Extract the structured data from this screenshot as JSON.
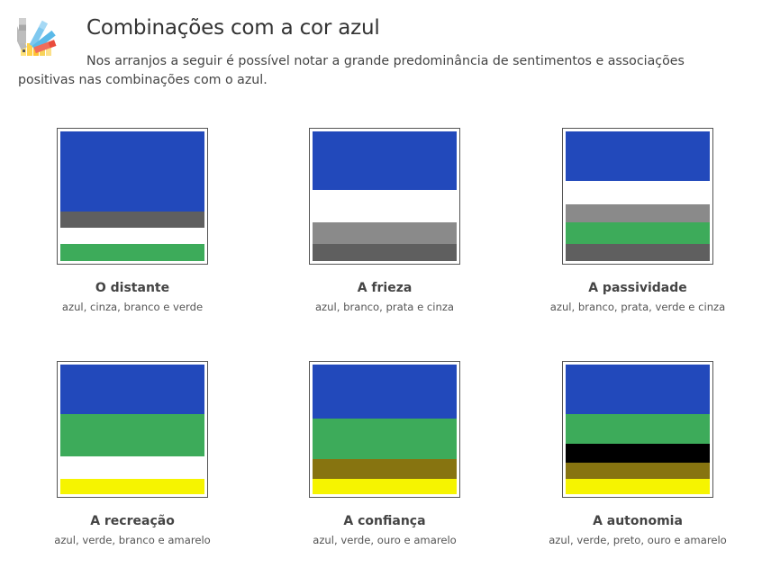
{
  "header": {
    "icon": "color-palette-icon",
    "title": "Combinações com a cor azul",
    "intro": "Nos arranjos a seguir é possível notar a grande predominância de sentimentos e associações positivas nas combinações com o azul."
  },
  "colors": {
    "azul": "#2249bb",
    "cinza": "#5f5f5f",
    "branco": "#ffffff",
    "verde": "#3dab5a",
    "prata": "#8a8a8a",
    "amarelo": "#f6f400",
    "ouro": "#877410",
    "preto": "#000000"
  },
  "combinations": [
    {
      "title": "O distante",
      "description": "azul, cinza, branco e verde",
      "bands": [
        {
          "color": "#2249bb",
          "share": 0.62
        },
        {
          "color": "#5f5f5f",
          "share": 0.125
        },
        {
          "color": "#ffffff",
          "share": 0.125
        },
        {
          "color": "#3dab5a",
          "share": 0.13
        }
      ]
    },
    {
      "title": "A frieza",
      "description": "azul, branco, prata e cinza",
      "bands": [
        {
          "color": "#2249bb",
          "share": 0.45
        },
        {
          "color": "#ffffff",
          "share": 0.25
        },
        {
          "color": "#8a8a8a",
          "share": 0.17
        },
        {
          "color": "#5f5f5f",
          "share": 0.13
        }
      ]
    },
    {
      "title": "A passividade",
      "description": "azul, branco, prata, verde e cinza",
      "bands": [
        {
          "color": "#2249bb",
          "share": 0.38
        },
        {
          "color": "#ffffff",
          "share": 0.18
        },
        {
          "color": "#8a8a8a",
          "share": 0.14
        },
        {
          "color": "#3dab5a",
          "share": 0.17
        },
        {
          "color": "#5f5f5f",
          "share": 0.13
        }
      ]
    },
    {
      "title": "A recreação",
      "description": "azul, verde, branco e amarelo",
      "bands": [
        {
          "color": "#2249bb",
          "share": 0.38
        },
        {
          "color": "#3dab5a",
          "share": 0.33
        },
        {
          "color": "#ffffff",
          "share": 0.17
        },
        {
          "color": "#f6f400",
          "share": 0.12
        }
      ]
    },
    {
      "title": "A confiança",
      "description": "azul, verde, ouro e amarelo",
      "bands": [
        {
          "color": "#2249bb",
          "share": 0.42
        },
        {
          "color": "#3dab5a",
          "share": 0.31
        },
        {
          "color": "#877410",
          "share": 0.15
        },
        {
          "color": "#f6f400",
          "share": 0.12
        }
      ]
    },
    {
      "title": "A autonomia",
      "description": "azul, verde, preto, ouro e amarelo",
      "bands": [
        {
          "color": "#2249bb",
          "share": 0.38
        },
        {
          "color": "#3dab5a",
          "share": 0.23
        },
        {
          "color": "#000000",
          "share": 0.15
        },
        {
          "color": "#877410",
          "share": 0.12
        },
        {
          "color": "#f6f400",
          "share": 0.12
        }
      ]
    }
  ]
}
